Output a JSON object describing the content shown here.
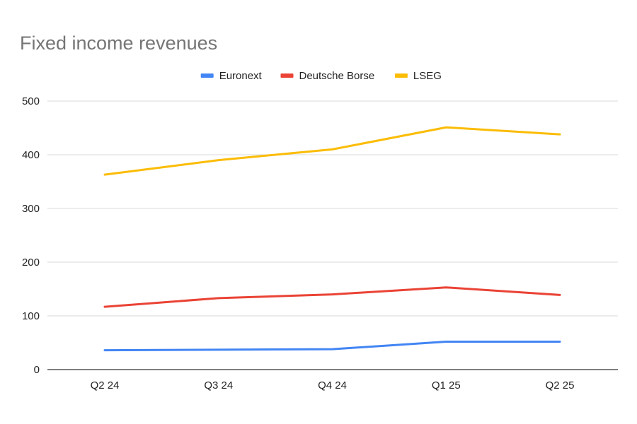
{
  "chart_data": {
    "type": "line",
    "title": "Fixed income revenues",
    "xlabel": "",
    "ylabel": "",
    "categories": [
      "Q2 24",
      "Q3 24",
      "Q4 24",
      "Q1 25",
      "Q2 25"
    ],
    "ylim": [
      0,
      500
    ],
    "yticks": [
      0,
      100,
      200,
      300,
      400,
      500
    ],
    "grid": true,
    "legend_position": "top",
    "series": [
      {
        "name": "Euronext",
        "color": "#4285f4",
        "values": [
          36,
          37,
          38,
          52,
          52
        ]
      },
      {
        "name": "Deutsche Borse",
        "color": "#ea4335",
        "values": [
          117,
          133,
          140,
          153,
          139
        ]
      },
      {
        "name": "LSEG",
        "color": "#fbbc04",
        "values": [
          363,
          390,
          410,
          451,
          438
        ]
      }
    ]
  }
}
